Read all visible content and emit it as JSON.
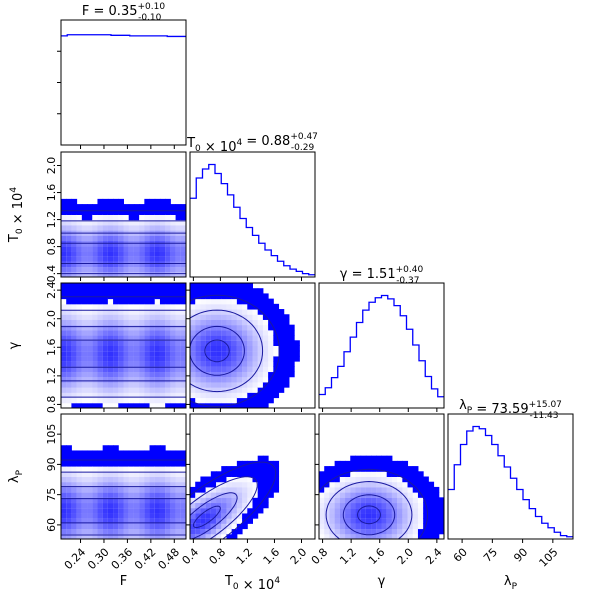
{
  "chart_data": {
    "type": "corner",
    "accent_color": "#0000ff",
    "parameters": [
      {
        "key": "F",
        "label": "F",
        "title": "F = 0.35^{+0.10}_{-0.10}",
        "range": [
          0.19,
          0.51
        ],
        "ticks": [
          0.24,
          0.3,
          0.36,
          0.42,
          0.48
        ],
        "tick_labels": [
          "0.24",
          "0.30",
          "0.36",
          "0.42",
          "0.48"
        ]
      },
      {
        "key": "T0",
        "label": "T_0 × 10^4",
        "title": "T_0 × 10^4 = 0.88^{+0.47}_{-0.29}",
        "range": [
          0.35,
          2.2
        ],
        "ticks": [
          0.4,
          0.8,
          1.2,
          1.6,
          2.0
        ],
        "tick_labels": [
          "0.4",
          "0.8",
          "1.2",
          "1.6",
          "2.0"
        ]
      },
      {
        "key": "gamma",
        "label": "γ",
        "title": "γ = 1.51^{+0.40}_{-0.37}",
        "range": [
          0.75,
          2.5
        ],
        "ticks": [
          0.8,
          1.2,
          1.6,
          2.0,
          2.4
        ],
        "tick_labels": [
          "0.8",
          "1.2",
          "1.6",
          "2.0",
          "2.4"
        ]
      },
      {
        "key": "lambdaP",
        "label": "λ_P",
        "title": "λ_P = 73.59^{+15.07}_{-11.43}",
        "range": [
          53,
          115
        ],
        "ticks": [
          60,
          75,
          90,
          105
        ],
        "tick_labels": [
          "60",
          "75",
          "90",
          "105"
        ]
      }
    ],
    "histograms": {
      "F": [
        0.97,
        0.98,
        0.98,
        0.98,
        0.98,
        0.98,
        0.98,
        0.98,
        0.975,
        0.975,
        0.975,
        0.97,
        0.97,
        0.97,
        0.97,
        0.97,
        0.97,
        0.965,
        0.965,
        0.965
      ],
      "T0": [
        0.7,
        0.88,
        0.96,
        1.0,
        0.92,
        0.83,
        0.73,
        0.62,
        0.52,
        0.44,
        0.37,
        0.3,
        0.24,
        0.19,
        0.14,
        0.1,
        0.07,
        0.05,
        0.03,
        0.02
      ],
      "gamma": [
        0.12,
        0.18,
        0.27,
        0.37,
        0.5,
        0.63,
        0.76,
        0.87,
        0.94,
        0.98,
        1.0,
        0.97,
        0.91,
        0.82,
        0.7,
        0.56,
        0.42,
        0.28,
        0.17,
        0.1
      ],
      "lambdaP": [
        0.44,
        0.66,
        0.84,
        0.96,
        1.0,
        0.98,
        0.92,
        0.84,
        0.74,
        0.64,
        0.54,
        0.44,
        0.35,
        0.27,
        0.2,
        0.14,
        0.1,
        0.06,
        0.03,
        0.02
      ]
    },
    "densities_2d": [
      {
        "x": "F",
        "y": "T0",
        "mode": "horizontal",
        "peak_y": 0.7,
        "spread_y": 0.3
      },
      {
        "x": "F",
        "y": "gamma",
        "mode": "horizontal",
        "peak_y": 1.51,
        "spread_y": 0.38
      },
      {
        "x": "F",
        "y": "lambdaP",
        "mode": "horizontal",
        "peak_y": 67,
        "spread_y": 12
      },
      {
        "x": "T0",
        "y": "gamma",
        "mode": "blob",
        "peak_x": 0.75,
        "peak_y": 1.55,
        "spread_x": 0.45,
        "spread_y": 0.38
      },
      {
        "x": "T0",
        "y": "lambdaP",
        "mode": "diagonal",
        "peak_x": 0.6,
        "peak_y": 64,
        "spread_x": 0.45,
        "spread_y": 12
      },
      {
        "x": "gamma",
        "y": "lambdaP",
        "mode": "blob",
        "peak_x": 1.45,
        "peak_y": 65,
        "spread_x": 0.4,
        "spread_y": 11
      }
    ]
  }
}
